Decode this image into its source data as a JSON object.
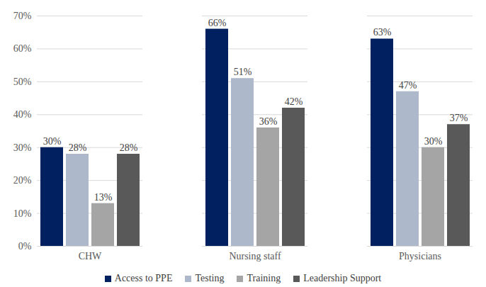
{
  "chart_data": {
    "type": "bar",
    "categories": [
      "CHW",
      "Nursing staff",
      "Physicians"
    ],
    "series": [
      {
        "name": "Access to PPE",
        "color": "#002060",
        "values": [
          30,
          66,
          63
        ],
        "value_labels": [
          "30%",
          "66%",
          "63%"
        ]
      },
      {
        "name": "Testing",
        "color": "#adb9ca",
        "values": [
          28,
          51,
          47
        ],
        "value_labels": [
          "28%",
          "51%",
          "47%"
        ]
      },
      {
        "name": "Training",
        "color": "#a5a5a5",
        "values": [
          13,
          36,
          30
        ],
        "value_labels": [
          "13%",
          "36%",
          "30%"
        ]
      },
      {
        "name": "Leadership Support",
        "color": "#595959",
        "values": [
          28,
          42,
          37
        ],
        "value_labels": [
          "28%",
          "42%",
          "37%"
        ]
      }
    ],
    "ylim": [
      0,
      70
    ],
    "yticks": [
      {
        "value": 0,
        "label": "0%"
      },
      {
        "value": 10,
        "label": "10%"
      },
      {
        "value": 20,
        "label": "20%"
      },
      {
        "value": 30,
        "label": "30%"
      },
      {
        "value": 40,
        "label": "40%"
      },
      {
        "value": 50,
        "label": "50%"
      },
      {
        "value": 60,
        "label": "60%"
      },
      {
        "value": 70,
        "label": "70%"
      }
    ],
    "grid": true,
    "legend": "bottom",
    "data_labels": true
  }
}
